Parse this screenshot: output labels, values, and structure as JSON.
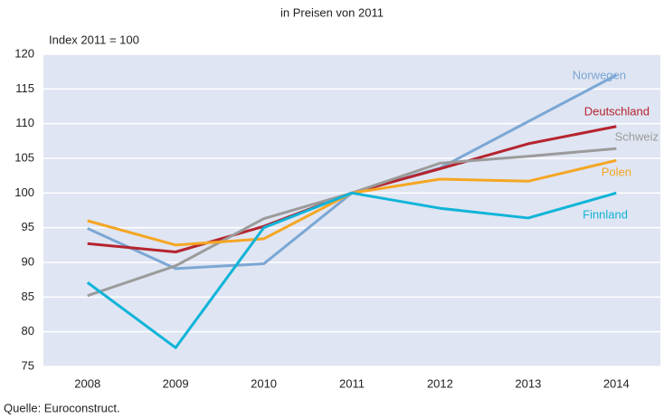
{
  "chart_data": {
    "type": "line",
    "title": "in Preisen von 2011",
    "y_label": "Index 2011 = 100",
    "source": "Quelle: Euroconstruct.",
    "categories": [
      "2008",
      "2009",
      "2010",
      "2011",
      "2012",
      "2013",
      "2014"
    ],
    "ylim": [
      75,
      120
    ],
    "yticks": [
      75,
      80,
      85,
      90,
      95,
      100,
      105,
      110,
      115,
      120
    ],
    "grid": true,
    "series": [
      {
        "name": "Norwegen",
        "color": "#7ba7d4",
        "values": [
          94.9,
          89.1,
          89.8,
          100,
          103.6,
          110.3,
          117.0
        ]
      },
      {
        "name": "Deutschland",
        "color": "#b5242f",
        "values": [
          92.7,
          91.5,
          95.2,
          100,
          103.5,
          107.1,
          109.6
        ]
      },
      {
        "name": "Schweiz",
        "color": "#9b9b9b",
        "values": [
          85.2,
          89.5,
          96.3,
          100,
          104.3,
          105.3,
          106.4
        ]
      },
      {
        "name": "Polen",
        "color": "#f5a623",
        "values": [
          96.0,
          92.5,
          93.4,
          100,
          102.0,
          101.7,
          104.7
        ]
      },
      {
        "name": "Finnland",
        "color": "#10b4d8",
        "values": [
          87.1,
          77.7,
          95.0,
          100,
          97.8,
          96.4,
          100.0
        ]
      }
    ]
  }
}
